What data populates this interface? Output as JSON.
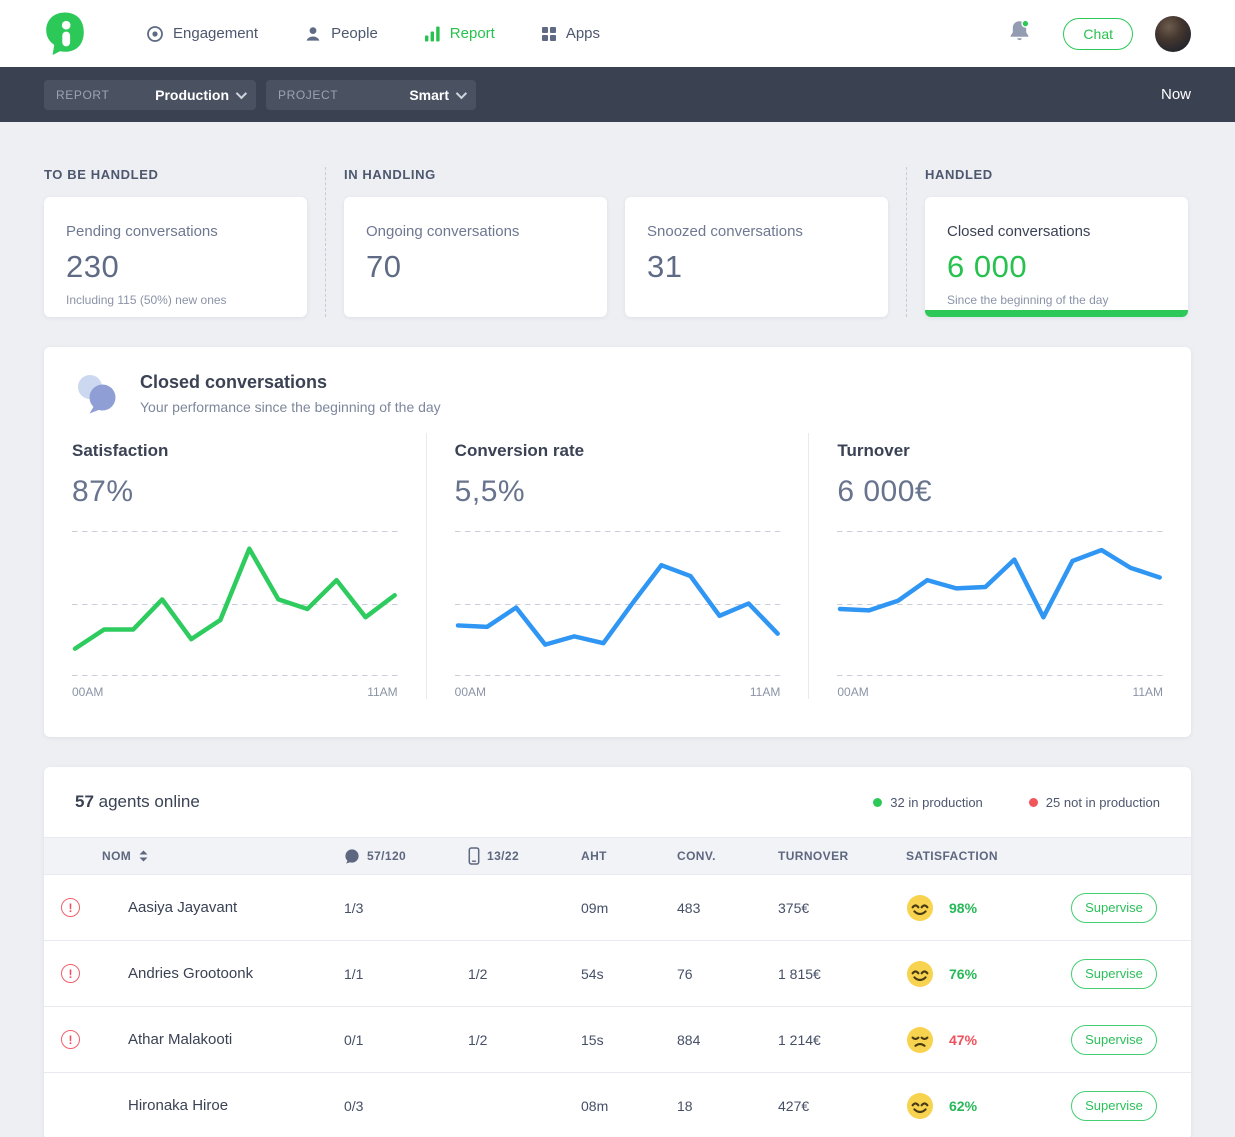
{
  "nav": {
    "brand": "iAdvize",
    "items": [
      {
        "label": "Engagement",
        "active": false
      },
      {
        "label": "People",
        "active": false
      },
      {
        "label": "Report",
        "active": true
      },
      {
        "label": "Apps",
        "active": false
      }
    ],
    "chat_button": "Chat"
  },
  "toolbar": {
    "report_label": "REPORT",
    "report_value": "Production",
    "project_label": "PROJECT",
    "project_value": "Smart",
    "time_range": "Now"
  },
  "stats": {
    "groups": [
      {
        "label": "TO BE HANDLED",
        "cards": [
          {
            "title": "Pending conversations",
            "value": "230",
            "subtitle": "Including 115 (50%) new ones"
          }
        ]
      },
      {
        "label": "IN HANDLING",
        "cards": [
          {
            "title": "Ongoing conversations",
            "value": "70",
            "subtitle": ""
          },
          {
            "title": "Snoozed conversations",
            "value": "31",
            "subtitle": ""
          }
        ]
      },
      {
        "label": "HANDLED",
        "cards": [
          {
            "title": "Closed conversations",
            "value": "6 000",
            "subtitle": "Since the beginning of the day",
            "highlight": true
          }
        ]
      }
    ]
  },
  "performance": {
    "title": "Closed conversations",
    "subtitle": "Your performance since the beginning of the day"
  },
  "chart_data": [
    {
      "id": "satisfaction",
      "type": "line",
      "title": "Satisfaction",
      "headline_value": "87%",
      "unit": "%",
      "color": "#2ecb5f",
      "grid": "dashed-horizontal",
      "legend": false,
      "x": [
        "00AM",
        "01AM",
        "02AM",
        "03AM",
        "04AM",
        "05AM",
        "06AM",
        "07AM",
        "08AM",
        "09AM",
        "10AM",
        "11AM"
      ],
      "x_tick_labels_shown": [
        "00AM",
        "11AM"
      ],
      "values": [
        17,
        31,
        31,
        53,
        24,
        38,
        90,
        53,
        46,
        67,
        40,
        56
      ],
      "ylim": [
        0,
        100
      ]
    },
    {
      "id": "conversion_rate",
      "type": "line",
      "title": "Conversion rate",
      "headline_value": "5,5%",
      "unit": "%",
      "color": "#2f96f3",
      "grid": "dashed-horizontal",
      "legend": false,
      "x": [
        "00AM",
        "01AM",
        "02AM",
        "03AM",
        "04AM",
        "05AM",
        "06AM",
        "07AM",
        "08AM",
        "09AM",
        "10AM",
        "11AM"
      ],
      "x_tick_labels_shown": [
        "00AM",
        "11AM"
      ],
      "values": [
        3.4,
        3.3,
        4.7,
        2.0,
        2.6,
        2.1,
        5.0,
        7.8,
        7.0,
        4.1,
        5.0,
        2.8
      ],
      "ylim": [
        0,
        10
      ]
    },
    {
      "id": "turnover",
      "type": "line",
      "title": "Turnover",
      "headline_value": "6 000€",
      "unit": "€",
      "color": "#2f96f3",
      "grid": "dashed-horizontal",
      "legend": false,
      "x": [
        "00AM",
        "01AM",
        "02AM",
        "03AM",
        "04AM",
        "05AM",
        "06AM",
        "07AM",
        "08AM",
        "09AM",
        "10AM",
        "11AM"
      ],
      "x_tick_labels_shown": [
        "00AM",
        "11AM"
      ],
      "values": [
        460,
        450,
        520,
        670,
        610,
        620,
        820,
        400,
        810,
        890,
        760,
        690
      ],
      "ylim": [
        0,
        1000
      ]
    }
  ],
  "agents": {
    "count": "57",
    "count_suffix": " agents online",
    "legend": [
      {
        "color": "green",
        "label": "32 in production"
      },
      {
        "color": "red",
        "label": "25 not in production"
      }
    ],
    "columns": {
      "name": "NOM",
      "chat_ratio": "57/120",
      "phone_ratio": "13/22",
      "aht": "AHT",
      "conv": "CONV.",
      "turnover": "TURNOVER",
      "satisfaction": "SATISFACTION"
    },
    "rows": [
      {
        "alert": true,
        "status": "online",
        "name": "Aasiya Jayavant",
        "chat": "1/3",
        "phone": "",
        "aht": "09m",
        "conv": "483",
        "turnover": "375€",
        "mood": "happy",
        "satisfaction": "98%",
        "satisfaction_color": "green",
        "action": "Supervise"
      },
      {
        "alert": true,
        "status": "online",
        "name": "Andries Grootoonk",
        "chat": "1/1",
        "phone": "1/2",
        "aht": "54s",
        "conv": "76",
        "turnover": "1 815€",
        "mood": "happy",
        "satisfaction": "76%",
        "satisfaction_color": "green",
        "action": "Supervise"
      },
      {
        "alert": true,
        "status": "online",
        "name": "Athar Malakooti",
        "chat": "0/1",
        "phone": "1/2",
        "aht": "15s",
        "conv": "884",
        "turnover": "1 214€",
        "mood": "sad",
        "satisfaction": "47%",
        "satisfaction_color": "red",
        "action": "Supervise"
      },
      {
        "alert": false,
        "status": "offline",
        "name": "Hironaka Hiroe",
        "chat": "0/3",
        "phone": "",
        "aht": "08m",
        "conv": "18",
        "turnover": "427€",
        "mood": "happy",
        "satisfaction": "62%",
        "satisfaction_color": "green",
        "action": "Supervise"
      }
    ]
  },
  "colors": {
    "accent_green": "#2dc958",
    "alert_red": "#f2545b",
    "line_blue": "#2f96f3",
    "dark_bar": "#3a4150",
    "emoji_yellow": "#f7d34f"
  }
}
